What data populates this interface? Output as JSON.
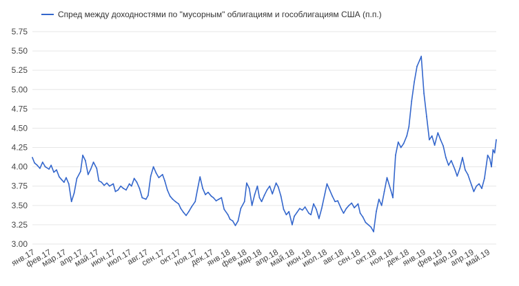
{
  "chart_data": {
    "type": "line",
    "series": [
      {
        "name": "Спред между доходностями по \"мусорным\" облигациям и гособлигациям США (п.п.)",
        "color": "#3366cc",
        "points": [
          [
            "2017-01-01",
            4.12
          ],
          [
            "2017-01-05",
            4.05
          ],
          [
            "2017-01-10",
            4.02
          ],
          [
            "2017-01-15",
            3.98
          ],
          [
            "2017-01-20",
            4.06
          ],
          [
            "2017-01-25",
            4.0
          ],
          [
            "2017-02-01",
            3.97
          ],
          [
            "2017-02-05",
            4.02
          ],
          [
            "2017-02-10",
            3.93
          ],
          [
            "2017-02-15",
            3.96
          ],
          [
            "2017-02-20",
            3.87
          ],
          [
            "2017-02-25",
            3.83
          ],
          [
            "2017-03-01",
            3.8
          ],
          [
            "2017-03-05",
            3.86
          ],
          [
            "2017-03-10",
            3.78
          ],
          [
            "2017-03-15",
            3.55
          ],
          [
            "2017-03-20",
            3.66
          ],
          [
            "2017-03-25",
            3.85
          ],
          [
            "2017-04-01",
            3.94
          ],
          [
            "2017-04-05",
            4.15
          ],
          [
            "2017-04-10",
            4.08
          ],
          [
            "2017-04-15",
            3.9
          ],
          [
            "2017-04-20",
            3.97
          ],
          [
            "2017-04-25",
            4.06
          ],
          [
            "2017-05-01",
            3.98
          ],
          [
            "2017-05-05",
            3.82
          ],
          [
            "2017-05-10",
            3.8
          ],
          [
            "2017-05-15",
            3.76
          ],
          [
            "2017-05-20",
            3.79
          ],
          [
            "2017-05-25",
            3.75
          ],
          [
            "2017-06-01",
            3.78
          ],
          [
            "2017-06-05",
            3.68
          ],
          [
            "2017-06-10",
            3.7
          ],
          [
            "2017-06-15",
            3.75
          ],
          [
            "2017-06-20",
            3.72
          ],
          [
            "2017-06-25",
            3.7
          ],
          [
            "2017-07-01",
            3.78
          ],
          [
            "2017-07-05",
            3.75
          ],
          [
            "2017-07-10",
            3.85
          ],
          [
            "2017-07-15",
            3.8
          ],
          [
            "2017-07-20",
            3.72
          ],
          [
            "2017-07-25",
            3.6
          ],
          [
            "2017-08-01",
            3.58
          ],
          [
            "2017-08-05",
            3.63
          ],
          [
            "2017-08-10",
            3.88
          ],
          [
            "2017-08-15",
            4.0
          ],
          [
            "2017-08-20",
            3.92
          ],
          [
            "2017-08-25",
            3.86
          ],
          [
            "2017-09-01",
            3.9
          ],
          [
            "2017-09-05",
            3.82
          ],
          [
            "2017-09-10",
            3.7
          ],
          [
            "2017-09-15",
            3.62
          ],
          [
            "2017-09-20",
            3.58
          ],
          [
            "2017-09-25",
            3.55
          ],
          [
            "2017-10-01",
            3.52
          ],
          [
            "2017-10-05",
            3.46
          ],
          [
            "2017-10-10",
            3.41
          ],
          [
            "2017-10-15",
            3.37
          ],
          [
            "2017-10-20",
            3.42
          ],
          [
            "2017-10-25",
            3.48
          ],
          [
            "2017-11-01",
            3.55
          ],
          [
            "2017-11-05",
            3.7
          ],
          [
            "2017-11-10",
            3.87
          ],
          [
            "2017-11-15",
            3.72
          ],
          [
            "2017-11-20",
            3.64
          ],
          [
            "2017-11-25",
            3.67
          ],
          [
            "2017-12-01",
            3.62
          ],
          [
            "2017-12-05",
            3.6
          ],
          [
            "2017-12-10",
            3.56
          ],
          [
            "2017-12-15",
            3.58
          ],
          [
            "2017-12-20",
            3.6
          ],
          [
            "2017-12-25",
            3.45
          ],
          [
            "2018-01-01",
            3.38
          ],
          [
            "2018-01-05",
            3.32
          ],
          [
            "2018-01-10",
            3.3
          ],
          [
            "2018-01-15",
            3.24
          ],
          [
            "2018-01-20",
            3.3
          ],
          [
            "2018-01-25",
            3.46
          ],
          [
            "2018-02-01",
            3.55
          ],
          [
            "2018-02-05",
            3.79
          ],
          [
            "2018-02-10",
            3.72
          ],
          [
            "2018-02-15",
            3.5
          ],
          [
            "2018-02-20",
            3.64
          ],
          [
            "2018-02-25",
            3.75
          ],
          [
            "2018-03-01",
            3.6
          ],
          [
            "2018-03-05",
            3.55
          ],
          [
            "2018-03-10",
            3.63
          ],
          [
            "2018-03-15",
            3.7
          ],
          [
            "2018-03-20",
            3.75
          ],
          [
            "2018-03-25",
            3.65
          ],
          [
            "2018-04-01",
            3.79
          ],
          [
            "2018-04-05",
            3.74
          ],
          [
            "2018-04-10",
            3.62
          ],
          [
            "2018-04-15",
            3.45
          ],
          [
            "2018-04-20",
            3.38
          ],
          [
            "2018-04-25",
            3.42
          ],
          [
            "2018-05-01",
            3.25
          ],
          [
            "2018-05-05",
            3.36
          ],
          [
            "2018-05-10",
            3.41
          ],
          [
            "2018-05-15",
            3.46
          ],
          [
            "2018-05-20",
            3.44
          ],
          [
            "2018-05-25",
            3.48
          ],
          [
            "2018-06-01",
            3.4
          ],
          [
            "2018-06-05",
            3.38
          ],
          [
            "2018-06-10",
            3.52
          ],
          [
            "2018-06-15",
            3.45
          ],
          [
            "2018-06-20",
            3.33
          ],
          [
            "2018-06-25",
            3.46
          ],
          [
            "2018-07-01",
            3.65
          ],
          [
            "2018-07-05",
            3.78
          ],
          [
            "2018-07-10",
            3.7
          ],
          [
            "2018-07-15",
            3.62
          ],
          [
            "2018-07-20",
            3.55
          ],
          [
            "2018-07-25",
            3.56
          ],
          [
            "2018-08-01",
            3.45
          ],
          [
            "2018-08-05",
            3.4
          ],
          [
            "2018-08-10",
            3.46
          ],
          [
            "2018-08-15",
            3.5
          ],
          [
            "2018-08-20",
            3.53
          ],
          [
            "2018-08-25",
            3.47
          ],
          [
            "2018-09-01",
            3.52
          ],
          [
            "2018-09-05",
            3.4
          ],
          [
            "2018-09-10",
            3.35
          ],
          [
            "2018-09-15",
            3.28
          ],
          [
            "2018-09-20",
            3.25
          ],
          [
            "2018-09-25",
            3.22
          ],
          [
            "2018-09-30",
            3.16
          ],
          [
            "2018-10-05",
            3.42
          ],
          [
            "2018-10-10",
            3.58
          ],
          [
            "2018-10-15",
            3.5
          ],
          [
            "2018-10-20",
            3.68
          ],
          [
            "2018-10-25",
            3.86
          ],
          [
            "2018-11-01",
            3.7
          ],
          [
            "2018-11-05",
            3.6
          ],
          [
            "2018-11-10",
            4.15
          ],
          [
            "2018-11-15",
            4.32
          ],
          [
            "2018-11-20",
            4.25
          ],
          [
            "2018-11-25",
            4.3
          ],
          [
            "2018-12-01",
            4.4
          ],
          [
            "2018-12-05",
            4.52
          ],
          [
            "2018-12-10",
            4.85
          ],
          [
            "2018-12-15",
            5.1
          ],
          [
            "2018-12-20",
            5.3
          ],
          [
            "2018-12-25",
            5.38
          ],
          [
            "2018-12-28",
            5.43
          ],
          [
            "2019-01-02",
            4.95
          ],
          [
            "2019-01-07",
            4.65
          ],
          [
            "2019-01-12",
            4.35
          ],
          [
            "2019-01-17",
            4.4
          ],
          [
            "2019-01-22",
            4.28
          ],
          [
            "2019-01-28",
            4.44
          ],
          [
            "2019-02-02",
            4.35
          ],
          [
            "2019-02-07",
            4.27
          ],
          [
            "2019-02-12",
            4.12
          ],
          [
            "2019-02-17",
            4.02
          ],
          [
            "2019-02-22",
            4.08
          ],
          [
            "2019-03-01",
            3.96
          ],
          [
            "2019-03-05",
            3.88
          ],
          [
            "2019-03-10",
            3.98
          ],
          [
            "2019-03-15",
            4.12
          ],
          [
            "2019-03-20",
            3.96
          ],
          [
            "2019-03-25",
            3.9
          ],
          [
            "2019-04-01",
            3.76
          ],
          [
            "2019-04-05",
            3.68
          ],
          [
            "2019-04-10",
            3.75
          ],
          [
            "2019-04-15",
            3.78
          ],
          [
            "2019-04-20",
            3.72
          ],
          [
            "2019-04-25",
            3.85
          ],
          [
            "2019-05-01",
            4.15
          ],
          [
            "2019-05-05",
            4.1
          ],
          [
            "2019-05-08",
            4.0
          ],
          [
            "2019-05-11",
            4.22
          ],
          [
            "2019-05-14",
            4.18
          ],
          [
            "2019-05-17",
            4.35
          ]
        ]
      }
    ],
    "y_ticks": [
      "3.00",
      "3.25",
      "3.50",
      "3.75",
      "4.00",
      "4.25",
      "4.50",
      "4.75",
      "5.00",
      "5.25",
      "5.50",
      "5.75"
    ],
    "ylim": [
      3.0,
      5.75
    ],
    "x_ticks": [
      [
        "янв.17",
        "2017-01-01"
      ],
      [
        "фев.17",
        "2017-02-01"
      ],
      [
        "мар.17",
        "2017-03-01"
      ],
      [
        "апр.17",
        "2017-04-01"
      ],
      [
        "май.17",
        "2017-05-01"
      ],
      [
        "июн.17",
        "2017-06-01"
      ],
      [
        "июл.17",
        "2017-07-01"
      ],
      [
        "авг.17",
        "2017-08-01"
      ],
      [
        "сен.17",
        "2017-09-01"
      ],
      [
        "окт.17",
        "2017-10-01"
      ],
      [
        "ноя.17",
        "2017-11-01"
      ],
      [
        "дек.17",
        "2017-12-01"
      ],
      [
        "янв.18",
        "2018-01-01"
      ],
      [
        "фев.18",
        "2018-02-01"
      ],
      [
        "мар.18",
        "2018-03-01"
      ],
      [
        "апр.18",
        "2018-04-01"
      ],
      [
        "май.18",
        "2018-05-01"
      ],
      [
        "июн.18",
        "2018-06-01"
      ],
      [
        "июл.18",
        "2018-07-01"
      ],
      [
        "авг.18",
        "2018-08-01"
      ],
      [
        "сен.18",
        "2018-09-01"
      ],
      [
        "окт.18",
        "2018-10-01"
      ],
      [
        "ноя.18",
        "2018-11-01"
      ],
      [
        "дек.18",
        "2018-12-01"
      ],
      [
        "янв.19",
        "2019-01-01"
      ],
      [
        "фев.19",
        "2019-02-01"
      ],
      [
        "мар.19",
        "2019-03-01"
      ],
      [
        "апр.19",
        "2019-04-01"
      ],
      [
        "май.19",
        "2019-05-01"
      ]
    ],
    "xlim": [
      "2017-01-01",
      "2019-05-17"
    ],
    "grid": true,
    "legend_position": "top-left"
  }
}
